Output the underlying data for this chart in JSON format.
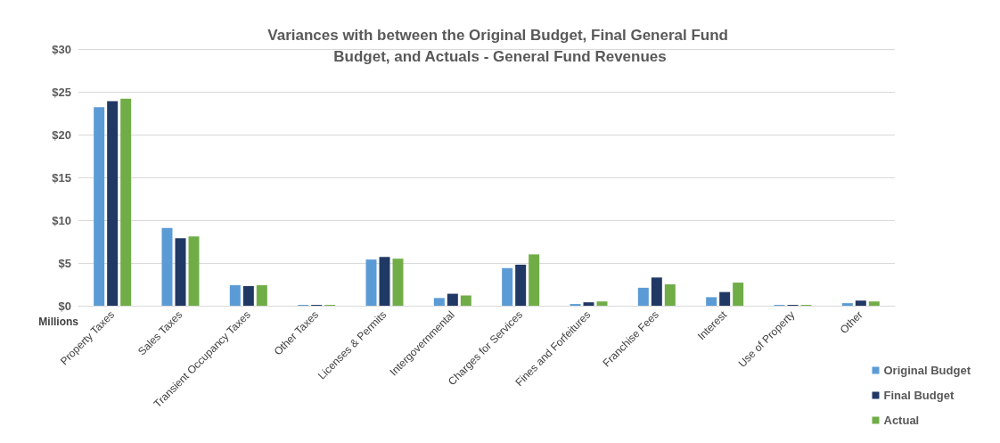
{
  "chart_data": {
    "type": "bar",
    "title": "Variances with between the Original Budget, Final General Fund Budget, and Actuals - General Fund Revenues",
    "ylabel": "Millions",
    "categories": [
      "Property Taxes",
      "Sales Taxes",
      "Transient Occupancy Taxes",
      "Other Taxes",
      "Licenses & Permits",
      "Intergovernmental",
      "Charges for Services",
      "Fines and Forfeitures",
      "Franchise Fees",
      "Interest",
      "Use of Property",
      "Other"
    ],
    "series": [
      {
        "name": "Original Budget",
        "color": "#5b9bd5",
        "values": [
          23.2,
          9.1,
          2.4,
          0.1,
          5.4,
          0.9,
          4.4,
          0.2,
          2.1,
          1.0,
          0.1,
          0.3
        ]
      },
      {
        "name": "Final Budget",
        "color": "#203864",
        "values": [
          23.9,
          7.9,
          2.3,
          0.1,
          5.7,
          1.4,
          4.8,
          0.4,
          3.3,
          1.6,
          0.1,
          0.6
        ]
      },
      {
        "name": "Actual",
        "color": "#70ad47",
        "values": [
          24.2,
          8.1,
          2.4,
          0.1,
          5.5,
          1.2,
          6.0,
          0.5,
          2.5,
          2.7,
          0.1,
          0.5
        ]
      }
    ],
    "ylim": [
      0,
      30
    ],
    "yticks": [
      {
        "value": 0,
        "label": "$0"
      },
      {
        "value": 5,
        "label": "$5"
      },
      {
        "value": 10,
        "label": "$10"
      },
      {
        "value": 15,
        "label": "$15"
      },
      {
        "value": 20,
        "label": "$20"
      },
      {
        "value": 25,
        "label": "$25"
      },
      {
        "value": 30,
        "label": "$30"
      }
    ],
    "grid": "y",
    "legend": "bottom right"
  }
}
